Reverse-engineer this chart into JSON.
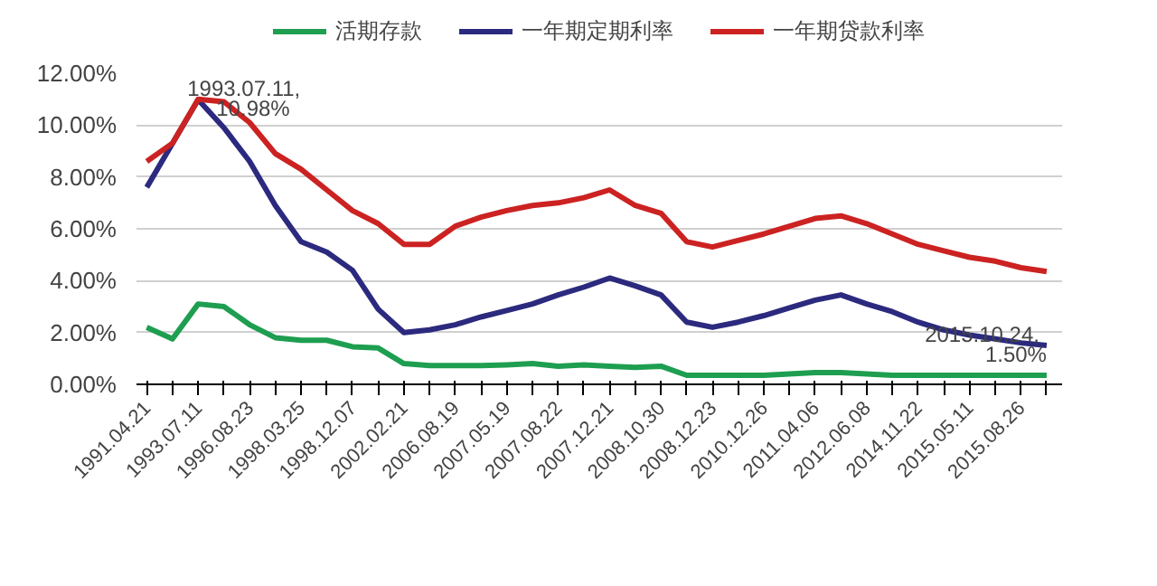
{
  "chart_data": {
    "type": "line",
    "categories": [
      "1991.04.21",
      null,
      "1993.07.11",
      null,
      "1996.08.23",
      null,
      "1998.03.25",
      null,
      "1998.12.07",
      null,
      "2002.02.21",
      null,
      "2006.08.19",
      null,
      "2007.05.19",
      null,
      "2007.08.22",
      null,
      "2007.12.21",
      null,
      "2008.10.30",
      null,
      "2008.12.23",
      null,
      "2010.12.26",
      null,
      "2011.04.06",
      null,
      "2012.06.08",
      null,
      "2014.11.22",
      null,
      "2015.05.11",
      null,
      "2015.08.26",
      null
    ],
    "series": [
      {
        "name": "活期存款",
        "color": "#1e9e50",
        "values": [
          2.2,
          1.75,
          3.1,
          3.0,
          2.3,
          1.8,
          1.7,
          1.7,
          1.45,
          1.4,
          0.8,
          0.72,
          0.72,
          0.72,
          0.75,
          0.8,
          0.7,
          0.75,
          0.7,
          0.65,
          0.7,
          0.35,
          0.35,
          0.35,
          0.35,
          0.4,
          0.45,
          0.45,
          0.4,
          0.35,
          0.35,
          0.35,
          0.35,
          0.35,
          0.35,
          0.35
        ]
      },
      {
        "name": "一年期定期利率",
        "color": "#2b2a7e",
        "values": [
          7.6,
          9.3,
          10.98,
          9.9,
          8.6,
          6.9,
          5.5,
          5.1,
          4.4,
          2.9,
          2.0,
          2.1,
          2.3,
          2.6,
          2.85,
          3.1,
          3.45,
          3.75,
          4.1,
          3.8,
          3.45,
          2.4,
          2.2,
          2.4,
          2.65,
          2.95,
          3.25,
          3.45,
          3.1,
          2.8,
          2.4,
          2.1,
          1.9,
          1.75,
          1.6,
          1.5
        ]
      },
      {
        "name": "一年期贷款利率",
        "color": "#cc2222",
        "values": [
          8.6,
          9.3,
          11.0,
          10.9,
          10.1,
          8.9,
          8.3,
          7.5,
          6.7,
          6.2,
          5.4,
          5.4,
          6.1,
          6.45,
          6.7,
          6.9,
          7.0,
          7.2,
          7.5,
          6.9,
          6.6,
          5.5,
          5.3,
          5.55,
          5.8,
          6.1,
          6.4,
          6.5,
          6.2,
          5.8,
          5.4,
          5.15,
          4.9,
          4.75,
          4.5,
          4.35
        ]
      }
    ],
    "ylim": [
      0,
      12
    ],
    "yticks": [
      {
        "value": 0,
        "label": "0.00%"
      },
      {
        "value": 2,
        "label": "2.00%"
      },
      {
        "value": 4,
        "label": "4.00%"
      },
      {
        "value": 6,
        "label": "6.00%"
      },
      {
        "value": 8,
        "label": "8.00%"
      },
      {
        "value": 10,
        "label": "10.00%"
      },
      {
        "value": 12,
        "label": "12.00%"
      }
    ],
    "annotations": [
      {
        "text": "1993.07.11,\n10.98%",
        "x": "1993.07.11",
        "y": 10.98
      },
      {
        "text": "2015.10.24,\n1.50%",
        "y": 1.5
      }
    ],
    "grid": "y",
    "legend": "top",
    "marker": "none",
    "line_style": "solid"
  }
}
